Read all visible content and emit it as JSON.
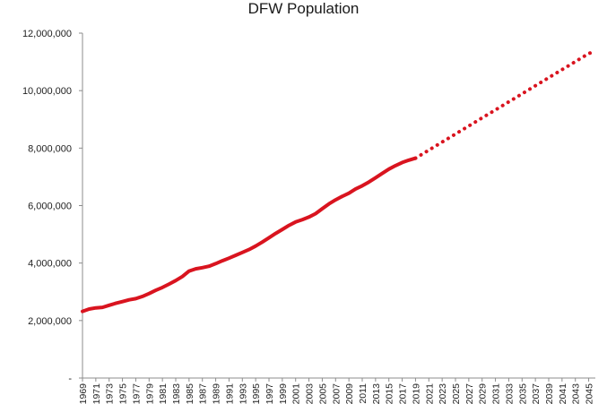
{
  "chart_data": {
    "type": "line",
    "title": "DFW Population",
    "xlabel": "",
    "ylabel": "",
    "xlim": [
      1969,
      2046
    ],
    "ylim": [
      0,
      12000000
    ],
    "grid": false,
    "legend": "none",
    "y_ticks": [
      0,
      2000000,
      4000000,
      6000000,
      8000000,
      10000000,
      12000000
    ],
    "y_tick_labels": [
      "-",
      "2,000,000",
      "4,000,000",
      "6,000,000",
      "8,000,000",
      "10,000,000",
      "12,000,000"
    ],
    "x_tick_labels": [
      "1969",
      "1971",
      "1973",
      "1975",
      "1977",
      "1979",
      "1981",
      "1983",
      "1985",
      "1987",
      "1989",
      "1991",
      "1993",
      "1995",
      "1997",
      "1999",
      "2001",
      "2003",
      "2005",
      "2007",
      "2009",
      "2011",
      "2013",
      "2015",
      "2017",
      "2019",
      "2021",
      "2023",
      "2025",
      "2027",
      "2029",
      "2031",
      "2033",
      "2035",
      "2037",
      "2039",
      "2041",
      "2043",
      "2045"
    ],
    "series": [
      {
        "style": "solid",
        "color": "#d9141f",
        "x": [
          1969,
          1970,
          1971,
          1972,
          1973,
          1974,
          1975,
          1976,
          1977,
          1978,
          1979,
          1980,
          1981,
          1982,
          1983,
          1984,
          1985,
          1986,
          1987,
          1988,
          1989,
          1990,
          1991,
          1992,
          1993,
          1994,
          1995,
          1996,
          1997,
          1998,
          1999,
          2000,
          2001,
          2002,
          2003,
          2004,
          2005,
          2006,
          2007,
          2008,
          2009,
          2010,
          2011,
          2012,
          2013,
          2014,
          2015,
          2016,
          2017,
          2018,
          2019
        ],
        "y": [
          2320000,
          2400000,
          2440000,
          2460000,
          2530000,
          2600000,
          2660000,
          2720000,
          2760000,
          2840000,
          2940000,
          3050000,
          3150000,
          3270000,
          3390000,
          3530000,
          3720000,
          3800000,
          3840000,
          3890000,
          3980000,
          4080000,
          4170000,
          4270000,
          4370000,
          4470000,
          4590000,
          4730000,
          4880000,
          5030000,
          5170000,
          5310000,
          5430000,
          5510000,
          5600000,
          5720000,
          5890000,
          6060000,
          6200000,
          6320000,
          6430000,
          6580000,
          6690000,
          6820000,
          6970000,
          7120000,
          7270000,
          7390000,
          7500000,
          7580000,
          7650000
        ]
      },
      {
        "style": "dotted",
        "color": "#d9141f",
        "x": [
          2019,
          2020,
          2021,
          2022,
          2023,
          2024,
          2025,
          2026,
          2027,
          2028,
          2029,
          2030,
          2031,
          2032,
          2033,
          2034,
          2035,
          2036,
          2037,
          2038,
          2039,
          2040,
          2041,
          2042,
          2043,
          2044,
          2045,
          2046
        ],
        "y": [
          7650000,
          7790000,
          7930000,
          8070000,
          8210000,
          8350000,
          8490000,
          8630000,
          8770000,
          8910000,
          9050000,
          9190000,
          9330000,
          9470000,
          9610000,
          9750000,
          9890000,
          10030000,
          10170000,
          10310000,
          10450000,
          10590000,
          10730000,
          10870000,
          11010000,
          11150000,
          11290000,
          11380000
        ]
      }
    ]
  }
}
